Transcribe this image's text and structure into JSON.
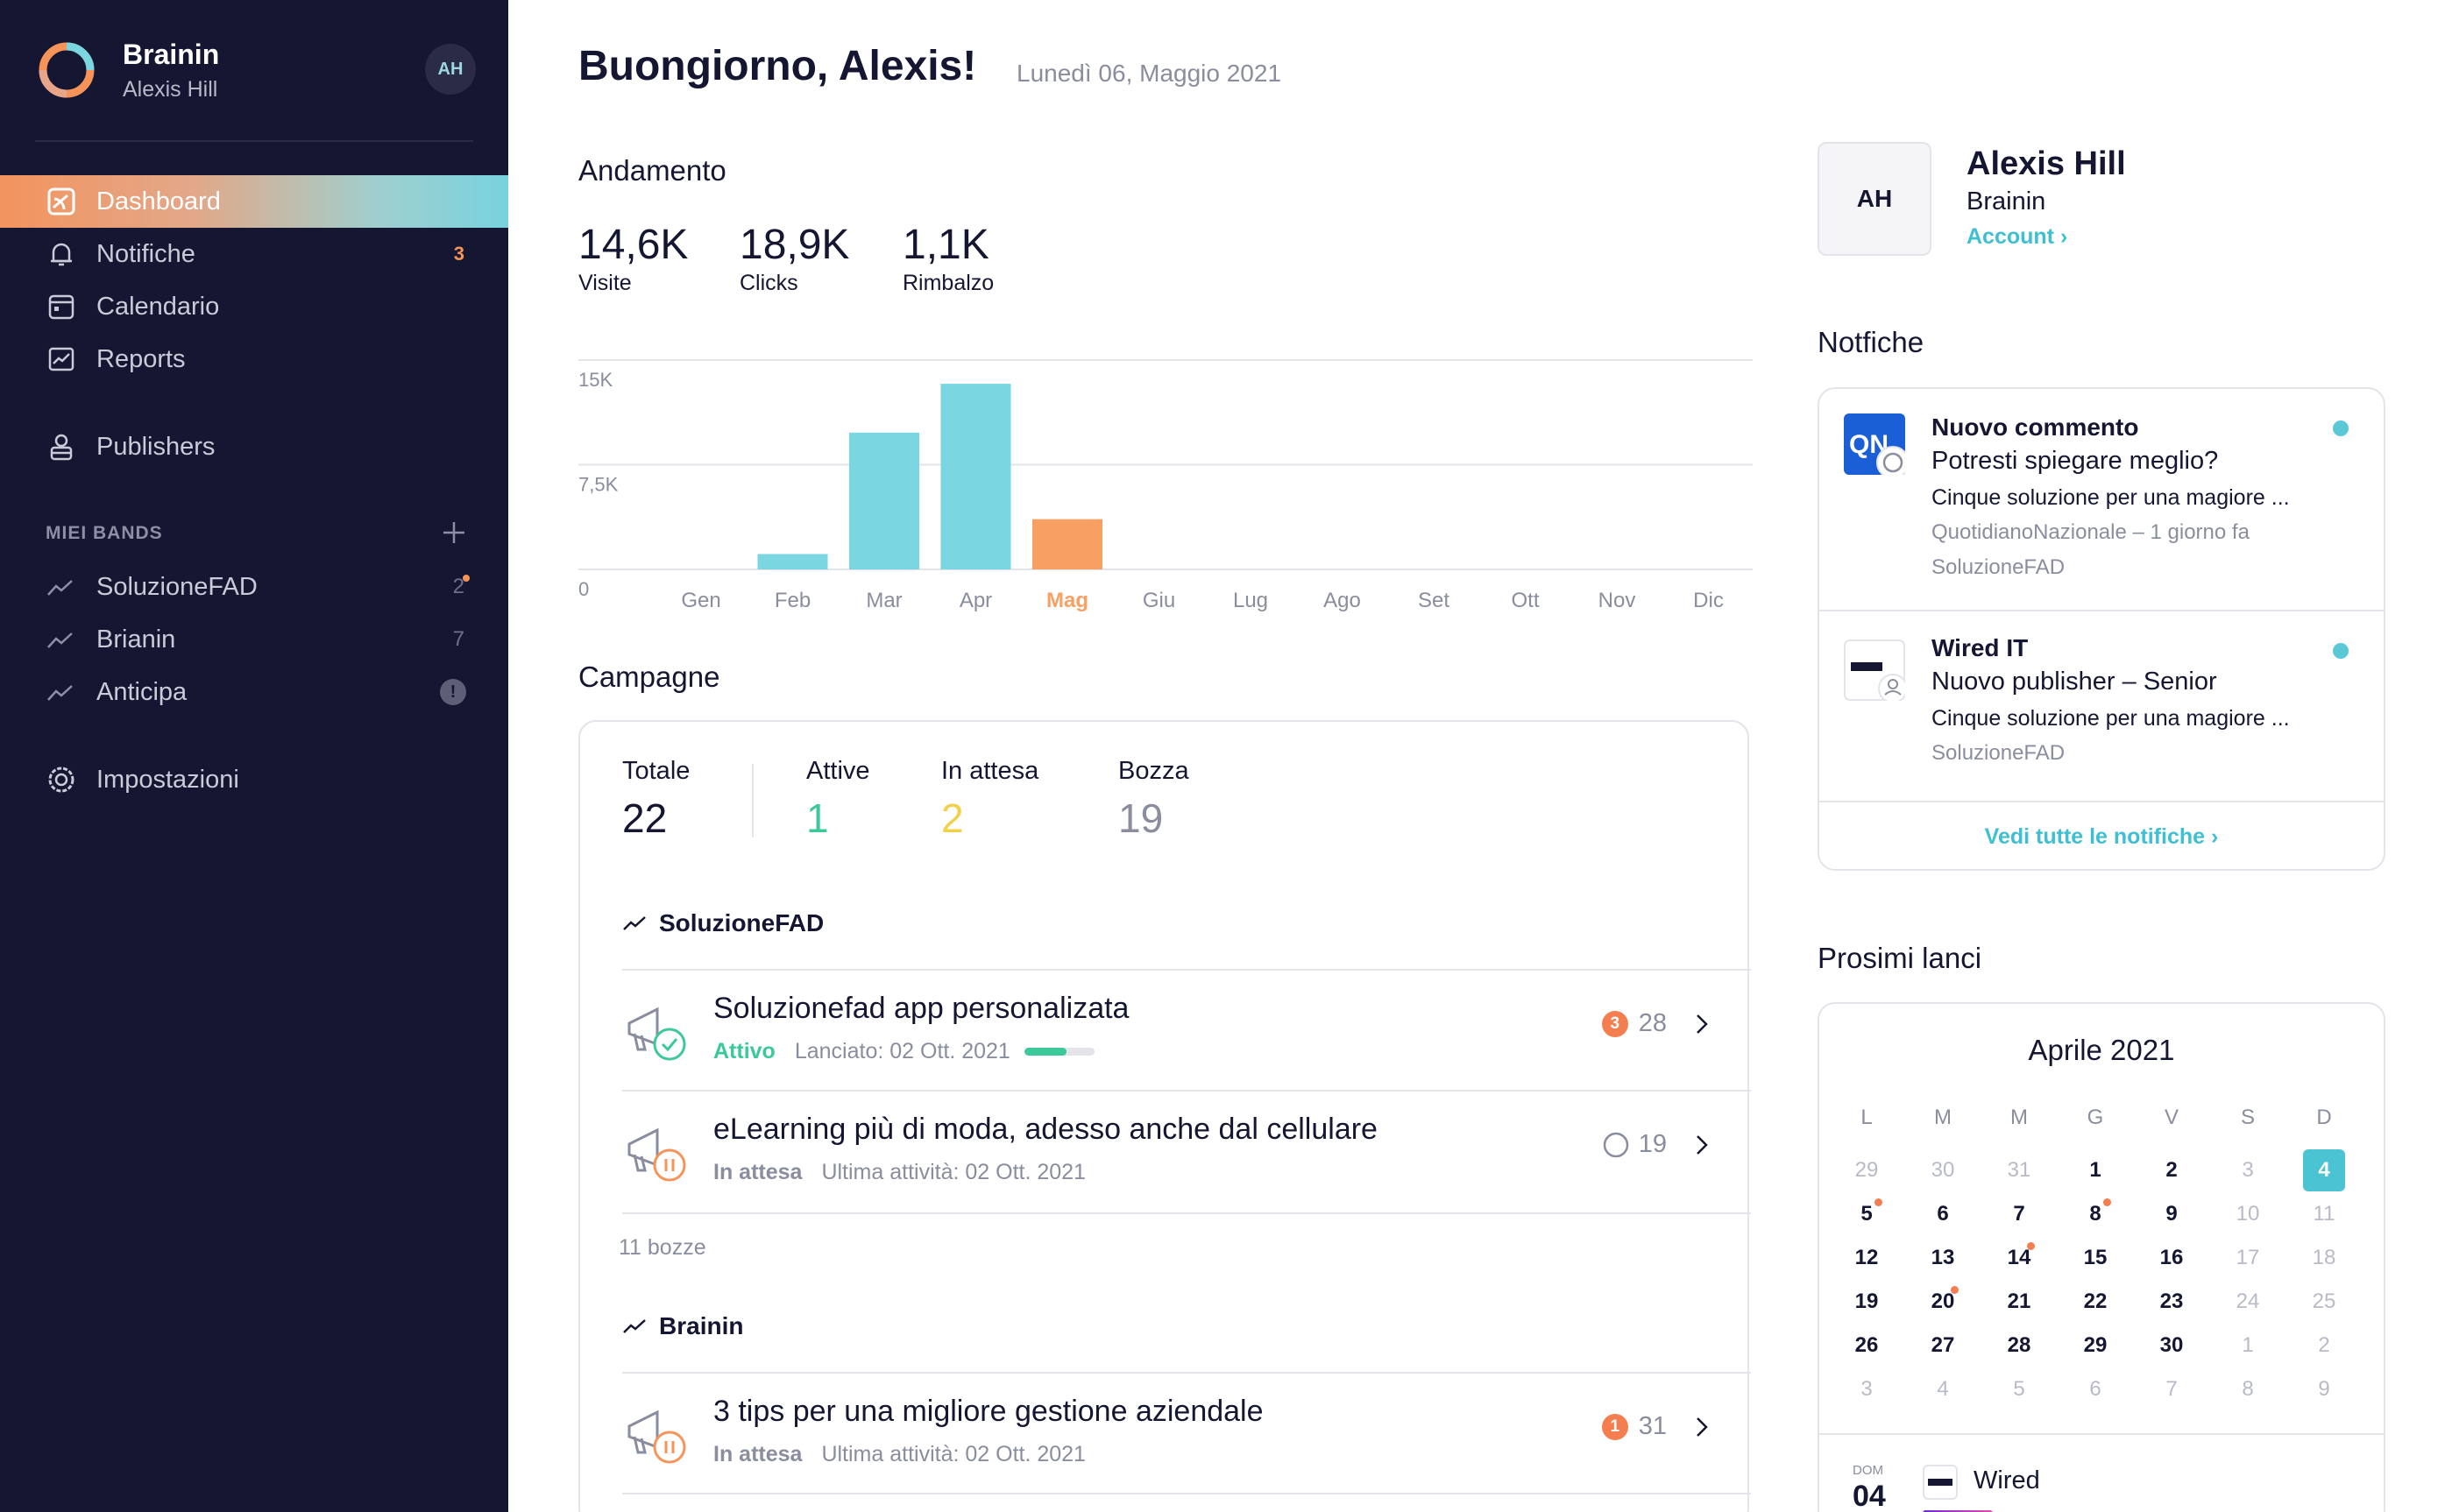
{
  "brand": {
    "name": "Brainin",
    "user": "Alexis Hill",
    "avatar": "AH"
  },
  "nav": [
    {
      "label": "Dashboard",
      "icon": "dashboard-icon",
      "active": true
    },
    {
      "label": "Notifiche",
      "icon": "bell-icon",
      "badge": "3"
    },
    {
      "label": "Calendario",
      "icon": "calendar-icon"
    },
    {
      "label": "Reports",
      "icon": "reports-icon"
    },
    {
      "label": "Publishers",
      "icon": "publishers-icon"
    }
  ],
  "bands": {
    "section_label": "MIEI BANDS",
    "items": [
      {
        "label": "SoluzioneFAD",
        "count": "2"
      },
      {
        "label": "Brianin",
        "count": "7"
      },
      {
        "label": "Anticipa",
        "count": "!"
      }
    ]
  },
  "settings": {
    "label": "Impostazioni"
  },
  "header": {
    "greeting": "Buongiorno, Alexis!",
    "date": "Lunedì 06, Maggio 2021"
  },
  "andamento": {
    "title": "Andamento",
    "stats": [
      {
        "value": "14,6K",
        "label": "Visite"
      },
      {
        "value": "18,9K",
        "label": "Clicks"
      },
      {
        "value": "1,1K",
        "label": "Rimbalzo"
      }
    ]
  },
  "chart_data": {
    "type": "bar",
    "categories": [
      "Gen",
      "Feb",
      "Mar",
      "Apr",
      "Mag",
      "Giu",
      "Lug",
      "Ago",
      "Set",
      "Ott",
      "Nov",
      "Dic"
    ],
    "values": [
      0,
      1.1,
      9.8,
      13.3,
      3.6,
      0,
      0,
      0,
      0,
      0,
      0,
      0
    ],
    "ytick_labels": [
      "15K",
      "7,5K",
      "0"
    ],
    "ylim": [
      0,
      15
    ],
    "highlight_category": "Mag",
    "colors": {
      "bar": "#7ad6e0",
      "highlight": "#f8a064"
    }
  },
  "campagne": {
    "title": "Campagne",
    "kpis": [
      {
        "label": "Totale",
        "value": "22",
        "color": "#151631"
      },
      {
        "label": "Attive",
        "value": "1",
        "color": "#3cc99a"
      },
      {
        "label": "In attesa",
        "value": "2",
        "color": "#f2d049"
      },
      {
        "label": "Bozza",
        "value": "19",
        "color": "#8a8d9e"
      }
    ],
    "groups": [
      {
        "band": "SoluzioneFAD",
        "rows": [
          {
            "title": "Soluzionefad app personalizata",
            "status": "Attivo",
            "meta": "Lanciato: 02 Ott. 2021",
            "badge": "3",
            "count": "28",
            "progress": 0.6
          },
          {
            "title": "eLearning più di moda, adesso anche dal cellulare",
            "status": "In attesa",
            "meta": "Ultima attività: 02 Ott. 2021",
            "count": "19"
          }
        ],
        "drafts": "11 bozze"
      },
      {
        "band": "Brainin",
        "rows": [
          {
            "title": "3 tips per una migliore gestione aziendale",
            "status": "In attesa",
            "meta": "Ultima attività: 02 Ott. 2021",
            "badge": "1",
            "count": "31"
          }
        ]
      }
    ]
  },
  "profile": {
    "avatar": "AH",
    "name": "Alexis Hill",
    "org": "Brainin",
    "link": "Account ›"
  },
  "notifiche": {
    "title": "Notfiche",
    "items": [
      {
        "title": "Nuovo commento",
        "sub": "Potresti spiegare meglio?",
        "desc": "Cinque soluzione per una magiore ...",
        "meta": "QuotidianoNazionale – 1 giorno fa",
        "meta2": "SoluzioneFAD",
        "logo": "ON"
      },
      {
        "title": "Wired IT",
        "sub": "Nuovo publisher – Senior",
        "desc": "Cinque soluzione per una magiore ...",
        "meta": "SoluzioneFAD",
        "logo": "WIRED"
      }
    ],
    "footer": "Vedi tutte le notifiche ›"
  },
  "lanci": {
    "title": "Prosimi lanci",
    "calendar": {
      "month": "Aprile 2021",
      "weekdays": [
        "L",
        "M",
        "M",
        "G",
        "V",
        "S",
        "D"
      ],
      "weeks": [
        [
          "29",
          "30",
          "31",
          "1",
          "2",
          "3",
          "4"
        ],
        [
          "5",
          "6",
          "7",
          "8",
          "9",
          "10",
          "11"
        ],
        [
          "12",
          "13",
          "14",
          "15",
          "16",
          "17",
          "18"
        ],
        [
          "19",
          "20",
          "21",
          "22",
          "23",
          "24",
          "25"
        ],
        [
          "26",
          "27",
          "28",
          "29",
          "30",
          "1",
          "2"
        ],
        [
          "3",
          "4",
          "5",
          "6",
          "7",
          "8",
          "9"
        ]
      ],
      "today": "4",
      "event_days": [
        "5",
        "8",
        "14",
        "20"
      ]
    },
    "next": {
      "day_name": "DOM",
      "day_num": "04",
      "name": "Wired"
    }
  }
}
